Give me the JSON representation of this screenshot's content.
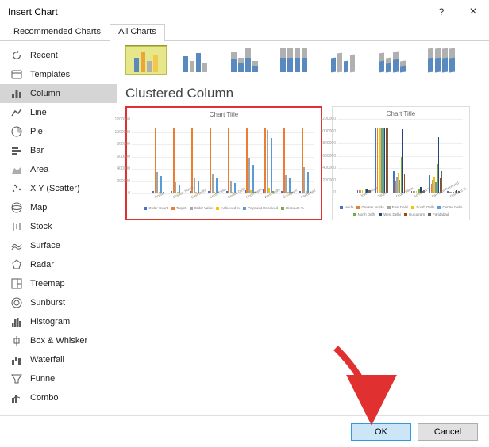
{
  "window": {
    "title": "Insert Chart",
    "help": "?",
    "close": "×"
  },
  "tabs": {
    "rec": "Recommended Charts",
    "all": "All Charts",
    "active": "all"
  },
  "sidebar": {
    "items": [
      {
        "name": "recent",
        "label": "Recent"
      },
      {
        "name": "templates",
        "label": "Templates"
      },
      {
        "name": "column",
        "label": "Column",
        "selected": true
      },
      {
        "name": "line",
        "label": "Line"
      },
      {
        "name": "pie",
        "label": "Pie"
      },
      {
        "name": "bar",
        "label": "Bar"
      },
      {
        "name": "area",
        "label": "Area"
      },
      {
        "name": "scatter",
        "label": "X Y (Scatter)"
      },
      {
        "name": "map",
        "label": "Map"
      },
      {
        "name": "stock",
        "label": "Stock"
      },
      {
        "name": "surface",
        "label": "Surface"
      },
      {
        "name": "radar",
        "label": "Radar"
      },
      {
        "name": "treemap",
        "label": "Treemap"
      },
      {
        "name": "sunburst",
        "label": "Sunburst"
      },
      {
        "name": "histogram",
        "label": "Histogram"
      },
      {
        "name": "boxwhisker",
        "label": "Box & Whisker"
      },
      {
        "name": "waterfall",
        "label": "Waterfall"
      },
      {
        "name": "funnel",
        "label": "Funnel"
      },
      {
        "name": "combo",
        "label": "Combo"
      }
    ]
  },
  "subtypes": {
    "selected": 0,
    "thumbs": [
      {
        "bars": [
          18,
          26,
          14,
          22
        ],
        "colors": [
          "#598abf",
          "#eda53a",
          "#b0b0b0",
          "#f2c94c"
        ]
      },
      {
        "bars": [
          20,
          14,
          24,
          12
        ],
        "colors": [
          "#598abf",
          "#b0b0b0",
          "#598abf",
          "#b0b0b0"
        ]
      },
      {
        "bars": [
          26,
          18,
          30,
          14
        ],
        "stack": true,
        "colors": [
          "#598abf",
          "#b0b0b0"
        ]
      },
      {
        "bars": [
          30,
          30,
          30,
          30
        ],
        "stack": true,
        "colors": [
          "#598abf",
          "#b0b0b0"
        ]
      },
      {
        "bars": [
          18,
          24,
          14,
          22
        ],
        "threeD": true,
        "colors": [
          "#598abf",
          "#b0b0b0",
          "#598abf",
          "#b0b0b0"
        ]
      },
      {
        "bars": [
          24,
          18,
          26,
          14
        ],
        "threeD": true,
        "stack": true,
        "colors": [
          "#598abf",
          "#b0b0b0"
        ]
      },
      {
        "bars": [
          30,
          30,
          30,
          30
        ],
        "threeD": true,
        "stack": true,
        "colors": [
          "#598abf",
          "#b0b0b0"
        ]
      }
    ]
  },
  "selected_subtype_label": "Clustered Column",
  "preview1": {
    "title": "Chart Title",
    "ymax": 1200000,
    "ystep": 200000,
    "yticks": [
      "1200000",
      "1000000",
      "800000",
      "600000",
      "400000",
      "200000",
      "0"
    ],
    "categories": [
      "Noida",
      "Greater Noida",
      "East Delhi",
      "South Delhi",
      "Centre Delhi",
      "North Delhi",
      "West Delhi",
      "Gurugram",
      "Faridabad"
    ],
    "series": [
      {
        "name": "Order Count",
        "color": "#4472c4"
      },
      {
        "name": "Target",
        "color": "#ed7d31"
      },
      {
        "name": "Order Value",
        "color": "#a5a5a5"
      },
      {
        "name": "Achieved %",
        "color": "#ffc000"
      },
      {
        "name": "Payment Received",
        "color": "#5b9bd5"
      },
      {
        "name": "Discount %",
        "color": "#70ad47"
      }
    ],
    "values": [
      [
        40000,
        1050000,
        350000,
        30000,
        280000,
        20000
      ],
      [
        35000,
        1050000,
        180000,
        25000,
        140000,
        18000
      ],
      [
        38000,
        1050000,
        260000,
        28000,
        200000,
        19000
      ],
      [
        42000,
        1050000,
        320000,
        32000,
        250000,
        21000
      ],
      [
        36000,
        1050000,
        200000,
        26000,
        160000,
        17000
      ],
      [
        45000,
        1050000,
        580000,
        55000,
        460000,
        28000
      ],
      [
        60000,
        1050000,
        1020000,
        95000,
        900000,
        40000
      ],
      [
        40000,
        1050000,
        300000,
        30000,
        240000,
        20000
      ],
      [
        42000,
        1050000,
        420000,
        40000,
        340000,
        24000
      ]
    ]
  },
  "preview2": {
    "title": "Chart Title",
    "ymax": 1200000,
    "ystep": 200000,
    "yticks": [
      "1200000",
      "1000000",
      "800000",
      "600000",
      "400000",
      "200000",
      "0"
    ],
    "categories": [
      "Order Count",
      "Target",
      "Order Value",
      "Achieved %",
      "Payment Received",
      "Discount %"
    ],
    "series": [
      {
        "name": "Noida",
        "color": "#4472c4"
      },
      {
        "name": "Greater Noida",
        "color": "#ed7d31"
      },
      {
        "name": "East Delhi",
        "color": "#a5a5a5"
      },
      {
        "name": "South Delhi",
        "color": "#ffc000"
      },
      {
        "name": "Centre Delhi",
        "color": "#5b9bd5"
      },
      {
        "name": "North Delhi",
        "color": "#70ad47"
      },
      {
        "name": "West Delhi",
        "color": "#264478"
      },
      {
        "name": "Gurugram",
        "color": "#9e480e"
      },
      {
        "name": "Faridabad",
        "color": "#636363"
      }
    ],
    "values": [
      [
        40000,
        35000,
        38000,
        42000,
        36000,
        45000,
        60000,
        40000,
        42000
      ],
      [
        1050000,
        1050000,
        1050000,
        1050000,
        1050000,
        1050000,
        1050000,
        1050000,
        1050000
      ],
      [
        350000,
        180000,
        260000,
        320000,
        200000,
        580000,
        1020000,
        300000,
        420000
      ],
      [
        30000,
        25000,
        28000,
        32000,
        26000,
        55000,
        95000,
        30000,
        40000
      ],
      [
        280000,
        140000,
        200000,
        250000,
        160000,
        460000,
        900000,
        240000,
        340000
      ],
      [
        20000,
        18000,
        19000,
        21000,
        17000,
        28000,
        40000,
        20000,
        24000
      ]
    ]
  },
  "footer": {
    "ok": "OK",
    "cancel": "Cancel"
  },
  "arrow_color": "#e03030"
}
